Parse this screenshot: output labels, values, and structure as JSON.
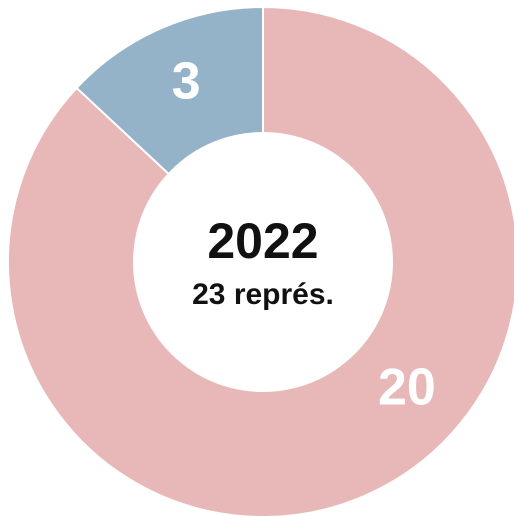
{
  "chart_data": {
    "type": "donut",
    "title": "2022",
    "subtitle": "23 représ.",
    "values": [
      20,
      3
    ],
    "colors": [
      "#e8b8b8",
      "#95b3c8"
    ]
  }
}
